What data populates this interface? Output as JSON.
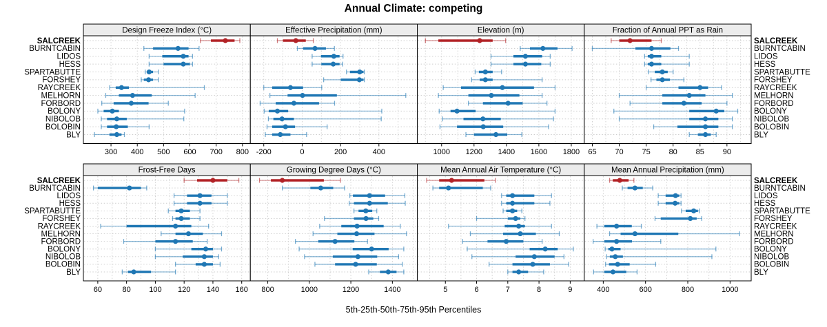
{
  "chart_data": {
    "type": "dot-whisker-trellis",
    "title": "Annual Climate: competing",
    "xlabel": "5th-25th-50th-75th-95th Percentiles",
    "percentile_labels": [
      "5th",
      "25th",
      "50th",
      "75th",
      "95th"
    ],
    "sites": [
      "SALCREEK",
      "BURNTCABIN",
      "LIDOS",
      "HESS",
      "SPARTABUTTE",
      "FORSHEY",
      "RAYCREEK",
      "MELHORN",
      "FORBORD",
      "BOLONY",
      "NIBOLOB",
      "BOLOBIN",
      "BLY"
    ],
    "highlight_site": "SALCREEK",
    "colors": {
      "highlight": "#B22226",
      "normal": "#1F77B4",
      "grid": "#CDCDCD",
      "strip_bg": "#ECECEC",
      "panel_border": "#000000"
    },
    "panels": [
      {
        "title": "Design Freeze Index (°C)",
        "row": 0,
        "col": 0,
        "xlim": [
          195,
          830
        ],
        "ticks": [
          300,
          400,
          500,
          600,
          700,
          800
        ],
        "grid": [
          300,
          400,
          500,
          600,
          700,
          800
        ],
        "values": {
          "SALCREEK": [
            640,
            680,
            735,
            770,
            790
          ],
          "BURNTCABIN": [
            425,
            460,
            555,
            595,
            635
          ],
          "LIDOS": [
            445,
            495,
            575,
            595,
            610
          ],
          "HESS": [
            445,
            500,
            575,
            600,
            610
          ],
          "SPARTABUTTE": [
            430,
            438,
            445,
            460,
            480
          ],
          "FORSHEY": [
            415,
            425,
            443,
            460,
            480
          ],
          "RAYCREEK": [
            295,
            318,
            340,
            368,
            655
          ],
          "MELHORN": [
            280,
            330,
            382,
            455,
            620
          ],
          "FORBORD": [
            265,
            310,
            377,
            443,
            518
          ],
          "BOLONY": [
            250,
            272,
            305,
            330,
            580
          ],
          "NIBOLOB": [
            263,
            285,
            322,
            360,
            577
          ],
          "BOLOBIN": [
            263,
            285,
            320,
            364,
            445
          ],
          "BLY": [
            237,
            294,
            322,
            340,
            351
          ]
        }
      },
      {
        "title": "Effective Precipitation (mm)",
        "row": 0,
        "col": 1,
        "xlim": [
          -270,
          600
        ],
        "ticks": [
          -200,
          0,
          200,
          400
        ],
        "grid": [
          -200,
          -100,
          0,
          100,
          200,
          300,
          400,
          500
        ],
        "values": {
          "SALCREEK": [
            -129,
            -100,
            -33,
            19,
            58
          ],
          "BURNTCABIN": [
            -25,
            5,
            67,
            124,
            168
          ],
          "LIDOS": [
            52,
            98,
            165,
            195,
            213
          ],
          "HESS": [
            52,
            100,
            162,
            195,
            211
          ],
          "SPARTABUTTE": [
            231,
            249,
            300,
            320,
            324
          ],
          "FORSHEY": [
            112,
            201,
            298,
            320,
            324
          ],
          "RAYCREEK": [
            -200,
            -156,
            -61,
            5,
            102
          ],
          "MELHORN": [
            -168,
            -76,
            2,
            181,
            540
          ],
          "FORBORD": [
            -219,
            -138,
            -43,
            88,
            169
          ],
          "BOLONY": [
            -198,
            -174,
            -129,
            -73,
            415
          ],
          "NIBOLOB": [
            -176,
            -150,
            -105,
            -43,
            412
          ],
          "BOLOBIN": [
            -183,
            -156,
            -87,
            -37,
            130
          ],
          "BLY": [
            -192,
            -156,
            -114,
            -61,
            23
          ]
        }
      },
      {
        "title": "Elevation (m)",
        "row": 0,
        "col": 2,
        "xlim": [
          850,
          1880
        ],
        "ticks": [
          1000,
          1200,
          1400,
          1600,
          1800
        ],
        "grid": [
          900,
          1000,
          1100,
          1200,
          1300,
          1400,
          1500,
          1600,
          1700,
          1800
        ],
        "values": {
          "SALCREEK": [
            900,
            980,
            1235,
            1315,
            1395
          ],
          "BURNTCABIN": [
            1485,
            1545,
            1625,
            1715,
            1805
          ],
          "LIDOS": [
            1305,
            1443,
            1517,
            1620,
            1670
          ],
          "HESS": [
            1305,
            1443,
            1517,
            1615,
            1670
          ],
          "SPARTABUTTE": [
            1207,
            1230,
            1270,
            1315,
            1370
          ],
          "FORSHEY": [
            1185,
            1235,
            1270,
            1315,
            1620
          ],
          "RAYCREEK": [
            1010,
            1120,
            1375,
            1570,
            1700
          ],
          "MELHORN": [
            980,
            1165,
            1307,
            1480,
            1620
          ],
          "FORBORD": [
            1165,
            1255,
            1410,
            1500,
            1650
          ],
          "BOLONY": [
            985,
            1055,
            1095,
            1210,
            1700
          ],
          "NIBOLOB": [
            1005,
            1135,
            1255,
            1365,
            1690
          ],
          "BOLOBIN": [
            990,
            1095,
            1257,
            1380,
            1660
          ],
          "BLY": [
            1150,
            1200,
            1335,
            1405,
            1495
          ]
        }
      },
      {
        "title": "Fraction of Annual PPT as Rain",
        "row": 0,
        "col": 3,
        "xlim": [
          63.5,
          94.5
        ],
        "ticks": [
          65,
          70,
          75,
          80,
          85,
          90
        ],
        "grid": [
          65,
          67.5,
          70,
          72.5,
          75,
          77.5,
          80,
          82.5,
          85,
          87.5,
          90,
          92.5
        ],
        "values": {
          "SALCREEK": [
            68.5,
            70,
            72,
            76,
            77.8
          ],
          "BURNTCABIN": [
            65,
            73,
            76,
            79.5,
            81
          ],
          "LIDOS": [
            74.7,
            75.3,
            76,
            77.8,
            83
          ],
          "HESS": [
            74.7,
            75.3,
            76,
            77.8,
            83
          ],
          "SPARTABUTTE": [
            75.4,
            76.6,
            78,
            79,
            80
          ],
          "FORSHEY": [
            75.9,
            76.9,
            78,
            79.4,
            82
          ],
          "RAYCREEK": [
            75,
            81,
            85,
            86.5,
            89
          ],
          "MELHORN": [
            70,
            78,
            83,
            86,
            91
          ],
          "FORBORD": [
            72,
            78,
            82,
            85.3,
            90
          ],
          "BOLONY": [
            69,
            83,
            88,
            89.5,
            92
          ],
          "NIBOLOB": [
            70,
            83,
            86,
            88.4,
            91
          ],
          "BOLOBIN": [
            76.4,
            80.8,
            86,
            88.4,
            91
          ],
          "BLY": [
            83,
            84.6,
            86,
            87,
            88
          ]
        }
      },
      {
        "title": "Frost-Free Days",
        "row": 1,
        "col": 0,
        "xlim": [
          50,
          166
        ],
        "ticks": [
          60,
          80,
          100,
          120,
          140,
          160
        ],
        "grid": [
          60,
          70,
          80,
          90,
          100,
          110,
          120,
          130,
          140,
          150,
          160
        ],
        "values": {
          "SALCREEK": [
            120,
            129,
            140,
            150,
            158
          ],
          "BURNTCABIN": [
            57,
            60,
            82,
            90,
            94
          ],
          "LIDOS": [
            113,
            122,
            131,
            139,
            150
          ],
          "HESS": [
            113,
            122,
            131,
            139,
            150
          ],
          "SPARTABUTTE": [
            109,
            114,
            118,
            124,
            131
          ],
          "FORSHEY": [
            112,
            114,
            118,
            124,
            131
          ],
          "RAYCREEK": [
            62,
            80,
            114,
            125,
            137
          ],
          "MELHORN": [
            104,
            114,
            123,
            133,
            146
          ],
          "FORBORD": [
            78,
            100,
            114,
            126,
            136
          ],
          "BOLONY": [
            100,
            125,
            135,
            140,
            146
          ],
          "NIBOLOB": [
            100,
            119,
            134,
            140,
            144
          ],
          "BOLOBIN": [
            114,
            128,
            134,
            140,
            145
          ],
          "BLY": [
            77,
            81,
            85,
            97,
            114
          ]
        }
      },
      {
        "title": "Growing Degree Days (°C)",
        "row": 1,
        "col": 1,
        "xlim": [
          716,
          1520
        ],
        "ticks": [
          800,
          1000,
          1200,
          1400
        ],
        "grid": [
          800,
          900,
          1000,
          1100,
          1200,
          1300,
          1400,
          1500
        ],
        "values": {
          "SALCREEK": [
            760,
            815,
            870,
            1070,
            1150
          ],
          "BURNTCABIN": [
            870,
            1005,
            1055,
            1115,
            1170
          ],
          "LIDOS": [
            1195,
            1210,
            1290,
            1365,
            1460
          ],
          "HESS": [
            1192,
            1215,
            1290,
            1378,
            1462
          ],
          "SPARTABUTTE": [
            1215,
            1237,
            1272,
            1303,
            1325
          ],
          "FORSHEY": [
            1073,
            1215,
            1273,
            1308,
            1334
          ],
          "RAYCREEK": [
            1050,
            1154,
            1230,
            1358,
            1438
          ],
          "MELHORN": [
            1018,
            1135,
            1228,
            1314,
            1468
          ],
          "FORBORD": [
            933,
            1043,
            1124,
            1217,
            1280
          ],
          "BOLONY": [
            951,
            1209,
            1300,
            1382,
            1455
          ],
          "NIBOLOB": [
            977,
            1113,
            1234,
            1327,
            1430
          ],
          "BOLOBIN": [
            1027,
            1124,
            1223,
            1325,
            1448
          ],
          "BLY": [
            1286,
            1340,
            1380,
            1420,
            1455
          ]
        }
      },
      {
        "title": "Mean Annual Air Temperature (°C)",
        "row": 1,
        "col": 2,
        "xlim": [
          4.1,
          9.45
        ],
        "ticks": [
          5,
          6,
          7,
          8,
          9
        ],
        "grid": [
          4.5,
          5,
          5.5,
          6,
          6.5,
          7,
          7.5,
          8,
          8.5,
          9
        ],
        "values": {
          "SALCREEK": [
            4.4,
            4.8,
            5.2,
            6.25,
            6.6
          ],
          "BURNTCABIN": [
            4.6,
            4.8,
            5.1,
            6.2,
            6.45
          ],
          "LIDOS": [
            6.8,
            6.95,
            7.15,
            7.85,
            8.4
          ],
          "HESS": [
            6.8,
            6.95,
            7.15,
            7.85,
            8.35
          ],
          "SPARTABUTTE": [
            6.85,
            6.95,
            7.15,
            7.3,
            7.45
          ],
          "FORSHEY": [
            6.0,
            7.0,
            7.25,
            7.4,
            7.55
          ],
          "RAYCREEK": [
            5.1,
            6.9,
            7.35,
            7.55,
            8.4
          ],
          "MELHORN": [
            5.8,
            6.85,
            7.4,
            7.9,
            8.65
          ],
          "FORBORD": [
            5.55,
            6.35,
            6.95,
            7.5,
            8.1
          ],
          "BOLONY": [
            5.7,
            7.7,
            8.2,
            8.6,
            9.1
          ],
          "NIBOLOB": [
            5.85,
            7.25,
            7.85,
            8.5,
            8.8
          ],
          "BOLOBIN": [
            6.4,
            7.15,
            7.8,
            8.35,
            8.95
          ],
          "BLY": [
            7.0,
            7.15,
            7.35,
            7.65,
            8.15
          ]
        }
      },
      {
        "title": "Mean Annual Precipitation (mm)",
        "row": 1,
        "col": 3,
        "xlim": [
          310,
          1100
        ],
        "ticks": [
          400,
          600,
          800,
          1000
        ],
        "grid": [
          400,
          500,
          600,
          700,
          800,
          900,
          1000
        ],
        "values": {
          "SALCREEK": [
            430,
            445,
            478,
            520,
            545
          ],
          "BURNTCABIN": [
            490,
            515,
            550,
            587,
            634
          ],
          "LIDOS": [
            660,
            695,
            742,
            760,
            768
          ],
          "HESS": [
            660,
            695,
            740,
            760,
            768
          ],
          "SPARTABUTTE": [
            770,
            790,
            828,
            848,
            855
          ],
          "FORSHEY": [
            645,
            672,
            812,
            842,
            866
          ],
          "RAYCREEK": [
            370,
            405,
            463,
            535,
            580
          ],
          "MELHORN": [
            430,
            482,
            550,
            755,
            1045
          ],
          "FORBORD": [
            352,
            405,
            463,
            536,
            672
          ],
          "BOLONY": [
            409,
            424,
            441,
            482,
            933
          ],
          "NIBOLOB": [
            416,
            431,
            457,
            493,
            914
          ],
          "BOLOBIN": [
            411,
            427,
            468,
            525,
            648
          ],
          "BLY": [
            354,
            405,
            446,
            509,
            560
          ]
        }
      }
    ]
  }
}
